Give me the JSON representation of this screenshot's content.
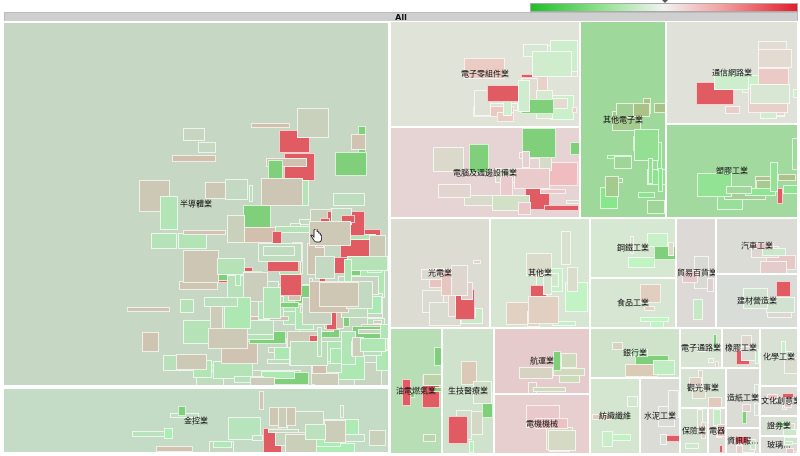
{
  "root": {
    "label": "All"
  },
  "legend": {
    "low_color": "#1fbf2a",
    "mid_color": "#f2f2f2",
    "high_color": "#e41d2a"
  },
  "sectors": [
    {
      "id": "semiconductor",
      "label": "半導體業",
      "color": "#c6d8c3",
      "seed": 1,
      "big": true
    },
    {
      "id": "financial-holding",
      "label": "金控業",
      "color": "#c4dcc5",
      "seed": 2,
      "big": true
    },
    {
      "id": "electronic-components",
      "label": "電子零組件業",
      "color": "#dfe3d8",
      "seed": 3
    },
    {
      "id": "other-electronics",
      "label": "其他電子業",
      "color": "#9fd89b",
      "seed": 4
    },
    {
      "id": "telecom-network",
      "label": "通信網路業",
      "color": "#e0e2d9",
      "seed": 5
    },
    {
      "id": "computer-peripherals",
      "label": "電腦及週邊設備業",
      "color": "#e6d3d3",
      "seed": 6
    },
    {
      "id": "plastics",
      "label": "塑膠工業",
      "color": "#a2d99f",
      "seed": 7
    },
    {
      "id": "optoelectronics",
      "label": "光電業",
      "color": "#dcdcd3",
      "seed": 8
    },
    {
      "id": "others",
      "label": "其他業",
      "color": "#d7e5d3",
      "seed": 9
    },
    {
      "id": "steel",
      "label": "鋼鐵工業",
      "color": "#d6e7d2",
      "seed": 10
    },
    {
      "id": "trading-department",
      "label": "貿易百貨業",
      "color": "#ddd9d7",
      "seed": 11
    },
    {
      "id": "automobile",
      "label": "汽車工業",
      "color": "#dcdcd7",
      "seed": 12
    },
    {
      "id": "food",
      "label": "食品工業",
      "color": "#d7e6d3",
      "seed": 13
    },
    {
      "id": "building-materials",
      "label": "建材營造業",
      "color": "#d9ddd7",
      "seed": 14
    },
    {
      "id": "oil-electric-gas",
      "label": "油電燃氣業",
      "color": "#b7deb4",
      "seed": 15
    },
    {
      "id": "biotech-medical",
      "label": "生技醫療業",
      "color": "#cfe2cc",
      "seed": 16
    },
    {
      "id": "shipping",
      "label": "航運業",
      "color": "#e5cbcb",
      "seed": 17
    },
    {
      "id": "electrical-machinery",
      "label": "電機機械",
      "color": "#e7cfd0",
      "seed": 18
    },
    {
      "id": "banking",
      "label": "銀行業",
      "color": "#cfe3cb",
      "seed": 19
    },
    {
      "id": "textiles",
      "label": "紡織纖維",
      "color": "#d4e6d0",
      "seed": 20
    },
    {
      "id": "cement",
      "label": "水泥工業",
      "color": "#dcdcd7",
      "seed": 21
    },
    {
      "id": "electronic-channels",
      "label": "電子通路業",
      "color": "#d9e4d5",
      "seed": 22
    },
    {
      "id": "rubber",
      "label": "橡膠工業",
      "color": "#dadfd6",
      "seed": 23
    },
    {
      "id": "chemical",
      "label": "化學工業",
      "color": "#d9e1d5",
      "seed": 24
    },
    {
      "id": "tourism",
      "label": "觀光事業",
      "color": "#d6e2d2",
      "seed": 25
    },
    {
      "id": "paper",
      "label": "造紙工業",
      "color": "#dbdcd6",
      "seed": 26
    },
    {
      "id": "cultural-creative",
      "label": "文化創意業",
      "color": "#dbdbd6",
      "seed": 27
    },
    {
      "id": "insurance",
      "label": "保險業",
      "color": "#d6e3d3",
      "seed": 28
    },
    {
      "id": "electrical-cable",
      "label": "電器...",
      "color": "#dcddd7",
      "seed": 29
    },
    {
      "id": "info-services",
      "label": "資訊服...",
      "color": "#dfdcd8",
      "seed": 30
    },
    {
      "id": "securities",
      "label": "證券業",
      "color": "#d8e0d4",
      "seed": 31
    },
    {
      "id": "glass-ceramics",
      "label": "玻璃...",
      "color": "#dcdcd7",
      "seed": 32
    }
  ]
}
